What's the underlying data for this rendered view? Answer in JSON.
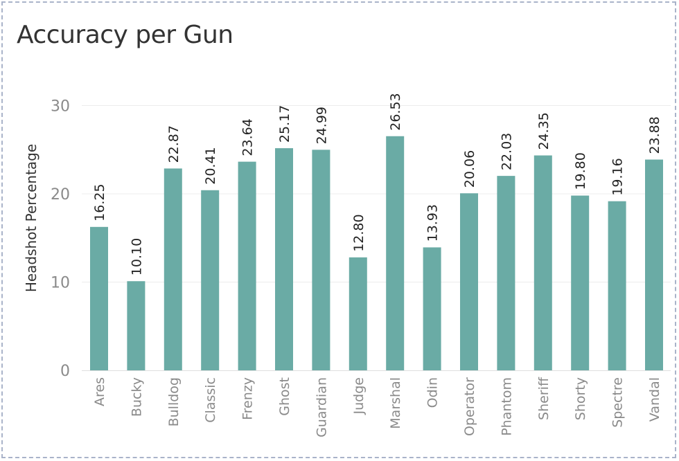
{
  "chart_data": {
    "type": "bar",
    "title": "Accuracy per Gun",
    "xlabel": "",
    "ylabel": "Headshot Percentage",
    "ylim": [
      0,
      33
    ],
    "yticks": [
      0,
      10,
      20,
      30
    ],
    "grid": true,
    "bar_color": "#6aaba5",
    "categories": [
      "Ares",
      "Bucky",
      "Bulldog",
      "Classic",
      "Frenzy",
      "Ghost",
      "Guardian",
      "Judge",
      "Marshal",
      "Odin",
      "Operator",
      "Phantom",
      "Sheriff",
      "Shorty",
      "Spectre",
      "Vandal"
    ],
    "values": [
      16.25,
      10.1,
      22.87,
      20.41,
      23.64,
      25.17,
      24.99,
      12.8,
      26.53,
      13.93,
      20.06,
      22.03,
      24.35,
      19.8,
      19.16,
      23.88
    ],
    "value_labels": [
      "16.25",
      "10.10",
      "22.87",
      "20.41",
      "23.64",
      "25.17",
      "24.99",
      "12.80",
      "26.53",
      "13.93",
      "20.06",
      "22.03",
      "24.35",
      "19.80",
      "19.16",
      "23.88"
    ]
  }
}
